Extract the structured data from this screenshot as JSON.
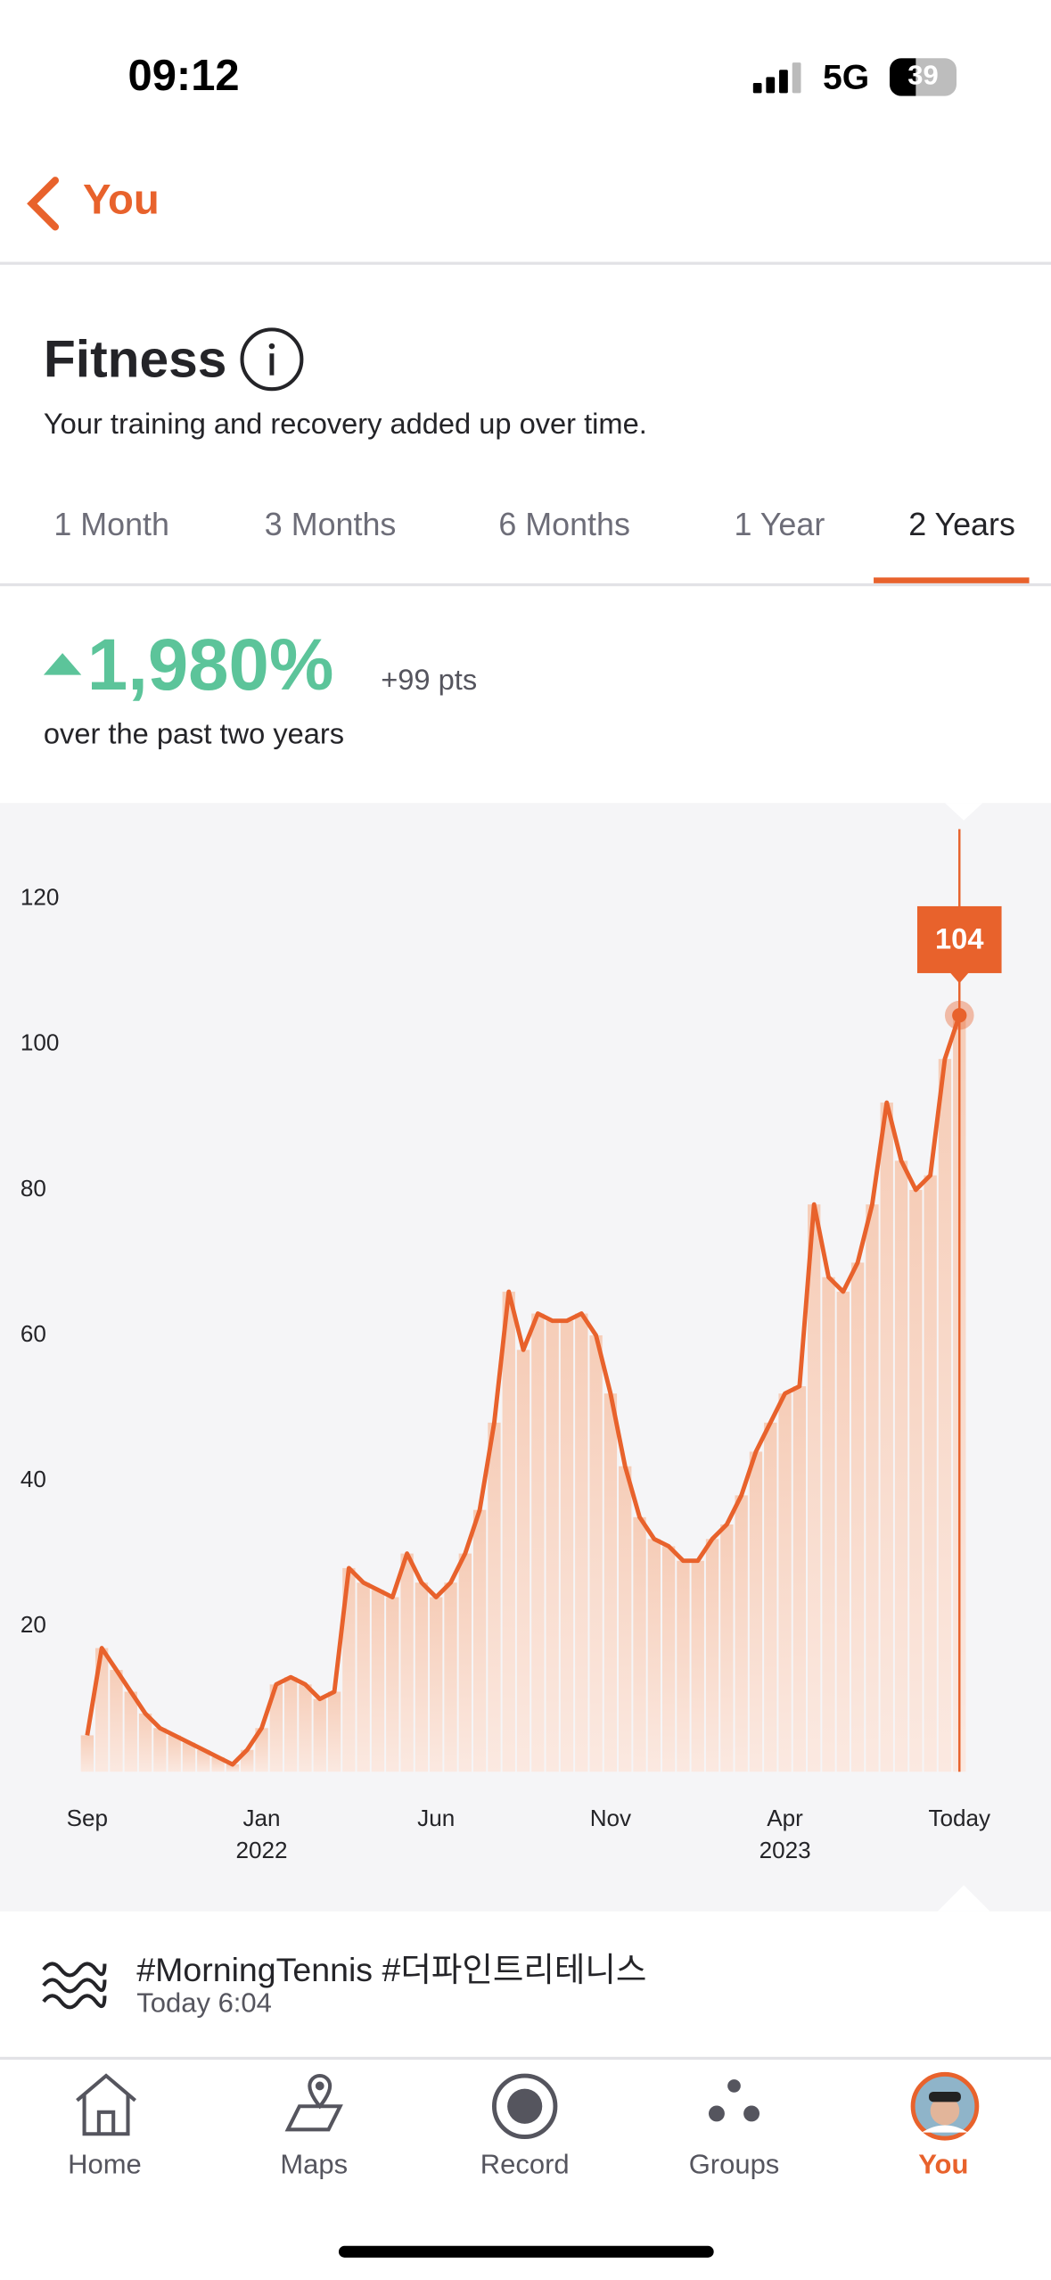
{
  "status_bar": {
    "time": "09:12",
    "network": "5G",
    "battery": "39"
  },
  "header": {
    "back": "You"
  },
  "fitness": {
    "title": "Fitness",
    "subtitle": "Your training and recovery added up over time."
  },
  "tabs": [
    "1 Month",
    "3 Months",
    "6 Months",
    "1 Year",
    "2 Years"
  ],
  "summary": {
    "change": "1,980%",
    "points": "+99 pts",
    "period": "over the past two years"
  },
  "chart_data": {
    "type": "line",
    "color": "#e8622c",
    "categories": [
      "Sep",
      null,
      null,
      null,
      null,
      null,
      null,
      null,
      null,
      null,
      null,
      null,
      "Jan",
      null,
      null,
      null,
      null,
      null,
      null,
      null,
      null,
      null,
      null,
      null,
      "Jun",
      null,
      null,
      null,
      null,
      null,
      null,
      null,
      null,
      null,
      null,
      null,
      "Nov",
      null,
      null,
      null,
      null,
      null,
      null,
      null,
      null,
      null,
      null,
      null,
      "Apr",
      null,
      null,
      null,
      null,
      null,
      null,
      null,
      null,
      null,
      null,
      null,
      "Today"
    ],
    "category_years": [
      null,
      null,
      null,
      null,
      null,
      null,
      null,
      null,
      null,
      null,
      null,
      null,
      "2022",
      null,
      null,
      null,
      null,
      null,
      null,
      null,
      null,
      null,
      null,
      null,
      null,
      null,
      null,
      null,
      null,
      null,
      null,
      null,
      null,
      null,
      null,
      null,
      null,
      null,
      null,
      null,
      null,
      null,
      null,
      null,
      null,
      null,
      null,
      null,
      "2023",
      null,
      null,
      null,
      null,
      null,
      null,
      null,
      null,
      null,
      null,
      null,
      null
    ],
    "values": [
      5,
      17,
      14,
      11,
      8,
      6,
      5,
      4,
      3,
      2,
      1,
      3,
      6,
      12,
      13,
      12,
      10,
      11,
      28,
      26,
      25,
      24,
      30,
      26,
      24,
      26,
      30,
      36,
      48,
      66,
      58,
      63,
      62,
      62,
      63,
      60,
      52,
      42,
      35,
      32,
      31,
      29,
      29,
      32,
      34,
      38,
      44,
      48,
      52,
      53,
      78,
      68,
      66,
      70,
      78,
      92,
      84,
      80,
      82,
      98,
      104
    ],
    "ylim": [
      0,
      130
    ],
    "yticks": [
      20,
      40,
      60,
      80,
      100,
      120
    ]
  },
  "activity": {
    "title": "#MorningTennis #더파인트리테니스",
    "time": "Today 6:04"
  },
  "bottom_nav": [
    "Home",
    "Maps",
    "Record",
    "Groups",
    "You"
  ]
}
